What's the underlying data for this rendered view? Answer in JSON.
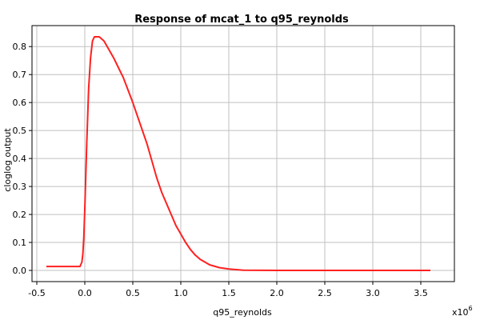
{
  "chart_data": {
    "type": "line",
    "title": "Response of mcat_1 to q95_reynolds",
    "xlabel": "q95_reynolds",
    "ylabel": "cloglog output",
    "x_multiplier_label": "x10",
    "x_multiplier_exponent": "6",
    "xlim": [
      -0.55,
      3.85
    ],
    "ylim": [
      -0.04,
      0.875
    ],
    "x_ticks": [
      -0.5,
      0.0,
      0.5,
      1.0,
      1.5,
      2.0,
      2.5,
      3.0,
      3.5
    ],
    "x_tick_labels": [
      "-0.5",
      "0.0",
      "0.5",
      "1.0",
      "1.5",
      "2.0",
      "2.5",
      "3.0",
      "3.5"
    ],
    "y_ticks": [
      0.0,
      0.1,
      0.2,
      0.3,
      0.4,
      0.5,
      0.6,
      0.7,
      0.8
    ],
    "y_tick_labels": [
      "0.0",
      "0.1",
      "0.2",
      "0.3",
      "0.4",
      "0.5",
      "0.6",
      "0.7",
      "0.8"
    ],
    "grid": true,
    "series": [
      {
        "color": "#ff2020",
        "x": [
          -0.4,
          -0.25,
          -0.05,
          -0.03,
          -0.02,
          -0.01,
          0.0,
          0.02,
          0.04,
          0.06,
          0.08,
          0.1,
          0.15,
          0.2,
          0.25,
          0.3,
          0.35,
          0.4,
          0.45,
          0.5,
          0.55,
          0.6,
          0.65,
          0.7,
          0.75,
          0.8,
          0.85,
          0.9,
          0.95,
          1.0,
          1.05,
          1.1,
          1.15,
          1.2,
          1.25,
          1.3,
          1.4,
          1.5,
          1.6,
          1.65,
          2.0,
          2.5,
          3.0,
          3.6
        ],
        "y": [
          0.014,
          0.014,
          0.014,
          0.03,
          0.06,
          0.12,
          0.22,
          0.45,
          0.65,
          0.76,
          0.82,
          0.835,
          0.835,
          0.82,
          0.79,
          0.76,
          0.725,
          0.69,
          0.645,
          0.6,
          0.55,
          0.5,
          0.45,
          0.39,
          0.33,
          0.28,
          0.24,
          0.2,
          0.16,
          0.13,
          0.1,
          0.075,
          0.055,
          0.04,
          0.03,
          0.02,
          0.01,
          0.005,
          0.002,
          0.001,
          0.0,
          0.0,
          0.0,
          0.0
        ]
      }
    ]
  }
}
